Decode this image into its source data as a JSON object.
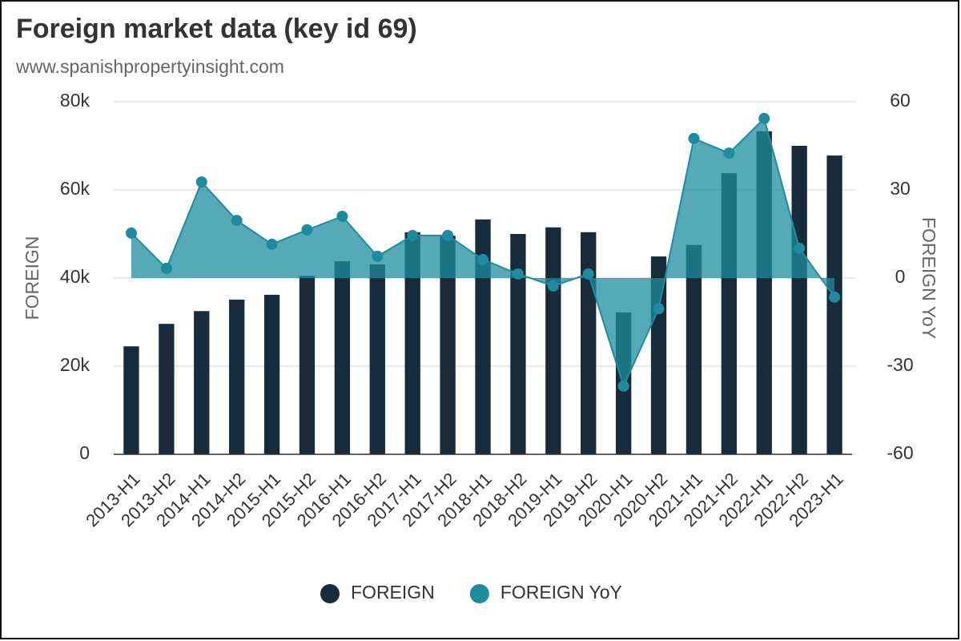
{
  "chart_data": {
    "type": "bar",
    "title": "Foreign market data (key id 69)",
    "subtitle": "www.spanishpropertyinsight.com",
    "y_label": "FOREIGN",
    "y2_label": "FOREIGN YoY",
    "categories": [
      "2013-H1",
      "2013-H2",
      "2014-H1",
      "2014-H2",
      "2015-H1",
      "2015-H2",
      "2016-H1",
      "2016-H2",
      "2017-H1",
      "2017-H2",
      "2018-H1",
      "2018-H2",
      "2019-H1",
      "2019-H2",
      "2020-H1",
      "2020-H2",
      "2021-H1",
      "2021-H2",
      "2022-H1",
      "2022-H2",
      "2023-H1"
    ],
    "series": [
      {
        "name": "FOREIGN",
        "type": "bar",
        "color": "#172b3b",
        "axis": "y",
        "values": [
          24500,
          29600,
          32500,
          35100,
          36200,
          40500,
          43800,
          43100,
          50400,
          49600,
          53300,
          50000,
          51500,
          50400,
          32200,
          44900,
          47500,
          63800,
          73300,
          70000,
          67800
        ]
      },
      {
        "name": "FOREIGN YoY",
        "type": "area",
        "color": "#1e8c9e",
        "axis": "y2",
        "values": [
          15.3,
          3.3,
          32.7,
          19.6,
          11.5,
          16.4,
          21,
          7.4,
          14.5,
          14.5,
          6.3,
          1.4,
          -2.7,
          1.4,
          -36.8,
          -10.4,
          47.5,
          42.5,
          54.3,
          10.1,
          -6.5
        ]
      }
    ],
    "ylim": [
      0,
      80000
    ],
    "yticks": [
      0,
      {
        "value": 20000,
        "label": "20k"
      },
      {
        "value": 40000,
        "label": "40k"
      },
      {
        "value": 60000,
        "label": "60k"
      },
      {
        "value": 80000,
        "label": "80k"
      }
    ],
    "y2lim": [
      -60,
      60
    ],
    "y2ticks": [
      -60,
      -30,
      0,
      30,
      60
    ],
    "grid": true,
    "legend": "bottom"
  }
}
